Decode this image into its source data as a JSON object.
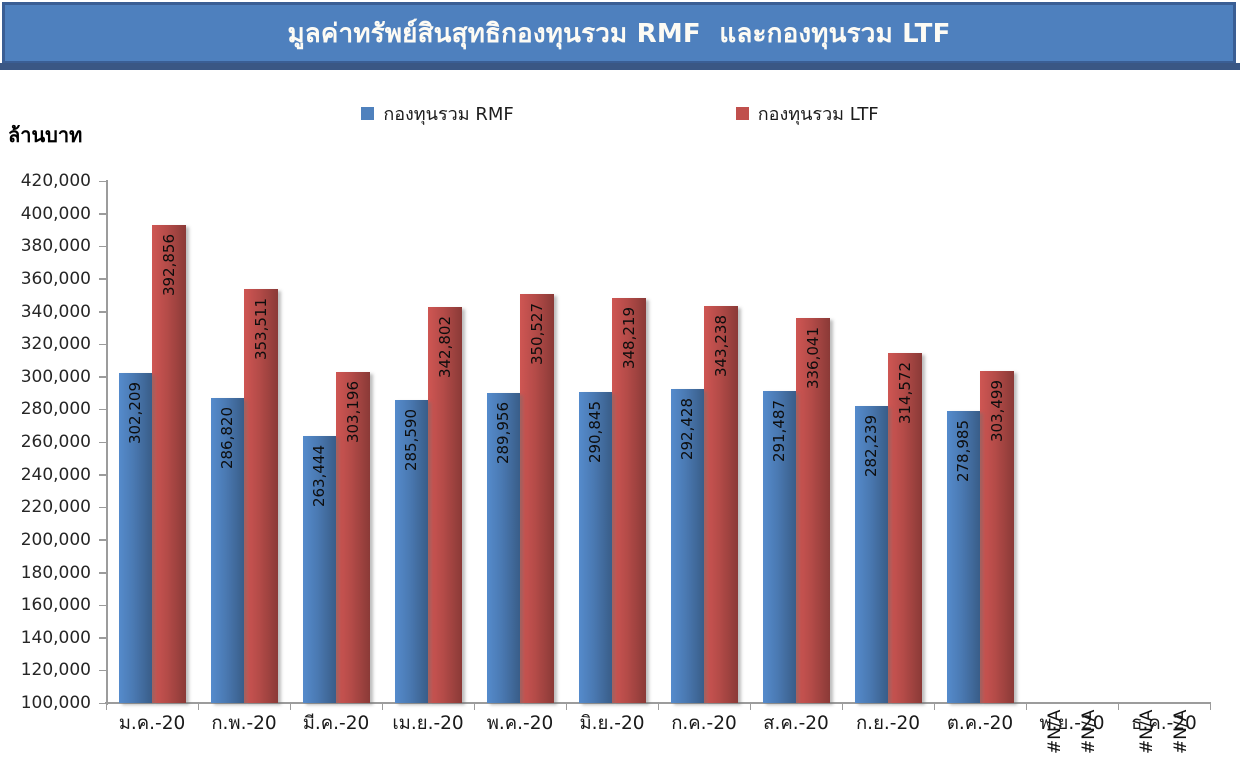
{
  "banner": {
    "strip_color": "#3A5784",
    "fill_color": "#4E80BE",
    "border_color": "#3A5E94"
  },
  "axis": {
    "line_color": "#9C9C9C"
  },
  "chart_data": {
    "type": "bar",
    "title": "มูลค่าทรัพย์สินสุทธิกองทุนรวม RMF  และกองทุนรวม LTF",
    "unit_label": "ล้านบาท",
    "na_label": "#N/A",
    "categories": [
      "ม.ค.-20",
      "ก.พ.-20",
      "มี.ค.-20",
      "เม.ย.-20",
      "พ.ค.-20",
      "มิ.ย.-20",
      "ก.ค.-20",
      "ส.ค.-20",
      "ก.ย.-20",
      "ต.ค.-20",
      "พ.ย.-20",
      "ธ.ค.-20"
    ],
    "series": [
      {
        "name": "กองทุนรวม RMF",
        "color": "#4F81BD",
        "values": [
          302209,
          286820,
          263444,
          285590,
          289956,
          290845,
          292428,
          291487,
          282239,
          278985,
          null,
          null
        ]
      },
      {
        "name": "กองทุนรวม LTF",
        "color": "#C0504D",
        "values": [
          392856,
          353511,
          303196,
          342802,
          350527,
          348219,
          343238,
          336041,
          314572,
          303499,
          null,
          null
        ]
      }
    ],
    "ylim": [
      100000,
      420000
    ],
    "ytick_step": 20000,
    "grid": false,
    "legend_position": "top"
  }
}
